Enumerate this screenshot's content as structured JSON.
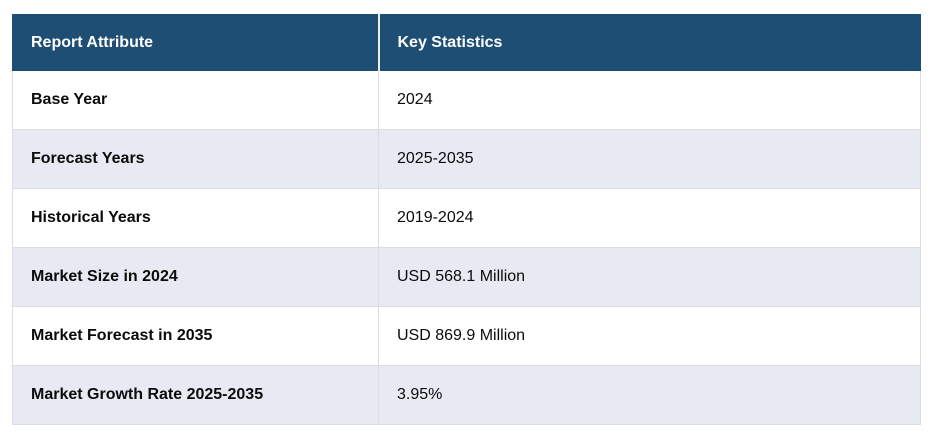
{
  "table": {
    "headers": [
      {
        "label": "Report Attribute"
      },
      {
        "label": "Key Statistics"
      }
    ],
    "rows": [
      {
        "attribute": "Base Year",
        "value": "2024"
      },
      {
        "attribute": "Forecast Years",
        "value": "2025-2035"
      },
      {
        "attribute": "Historical Years",
        "value": "2019-2024"
      },
      {
        "attribute": "Market Size in 2024",
        "value": "USD 568.1 Million"
      },
      {
        "attribute": "Market Forecast in 2035",
        "value": "USD 869.9 Million"
      },
      {
        "attribute": "Market Growth Rate 2025-2035",
        "value": "3.95%"
      }
    ],
    "colors": {
      "header_bg": "#1F4E74",
      "header_text": "#FFFFFF",
      "row_bg": "#FFFFFF",
      "row_alt_bg": "#E8EAF3",
      "body_text": "#0B0B0B",
      "border": "#DBDDE3",
      "page_bg": "#FFFFFF"
    }
  }
}
